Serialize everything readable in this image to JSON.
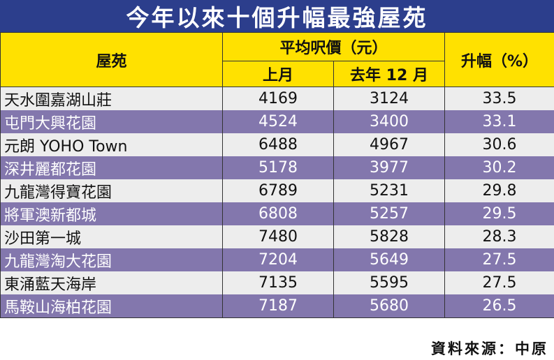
{
  "title": "今年以來十個升幅最強屋苑",
  "headers": {
    "estate": "屋苑",
    "price_group": "平均呎價（元）",
    "last_month": "上月",
    "jan_this_year": "去年 12 月",
    "increase": "升幅（%）"
  },
  "rows": [
    {
      "estate": "天水圍嘉湖山莊",
      "last_month": "4169",
      "prev": "3124",
      "increase": "33.5"
    },
    {
      "estate": "屯門大興花園",
      "last_month": "4524",
      "prev": "3400",
      "increase": "33.1"
    },
    {
      "estate": "元朗 YOHO Town",
      "last_month": "6488",
      "prev": "4967",
      "increase": "30.6"
    },
    {
      "estate": "深井麗都花園",
      "last_month": "5178",
      "prev": "3977",
      "increase": "30.2"
    },
    {
      "estate": "九龍灣得寶花園",
      "last_month": "6789",
      "prev": "5231",
      "increase": "29.8"
    },
    {
      "estate": "將軍澳新都城",
      "last_month": "6808",
      "prev": "5257",
      "increase": "29.5"
    },
    {
      "estate": "沙田第一城",
      "last_month": "7480",
      "prev": "5828",
      "increase": "28.3"
    },
    {
      "estate": "九龍灣淘大花園",
      "last_month": "7204",
      "prev": "5649",
      "increase": "27.5"
    },
    {
      "estate": "東涌藍天海岸",
      "last_month": "7135",
      "prev": "5595",
      "increase": "27.5"
    },
    {
      "estate": "馬鞍山海柏花園",
      "last_month": "7187",
      "prev": "5680",
      "increase": "26.5"
    }
  ],
  "source": "資料來源：中原",
  "colors": {
    "title_bg": "#2c3e8c",
    "header_bg": "#ffe100",
    "row_light": "#ededed",
    "row_dark": "#8377ad"
  }
}
